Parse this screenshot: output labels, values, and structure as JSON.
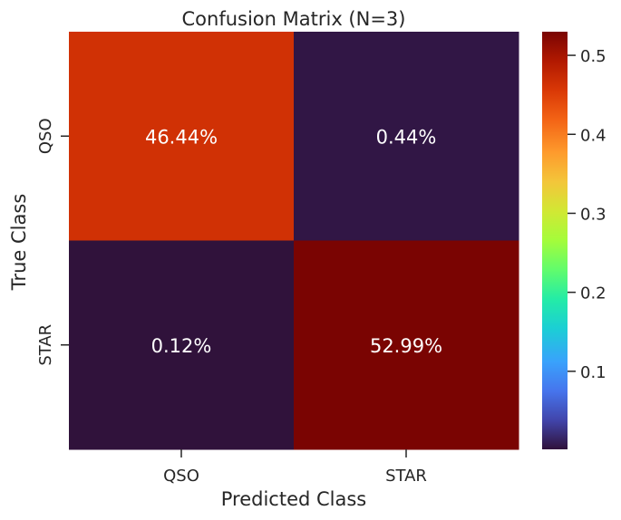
{
  "chart_data": {
    "type": "heatmap",
    "title": "Confusion Matrix (N=3)",
    "xlabel": "Predicted Class",
    "ylabel": "True Class",
    "x_categories": [
      "QSO",
      "STAR"
    ],
    "y_categories": [
      "QSO",
      "STAR"
    ],
    "values": [
      [
        0.4644,
        0.0044
      ],
      [
        0.0012,
        0.5299
      ]
    ],
    "cell_labels": [
      [
        "46.44%",
        "0.44%"
      ],
      [
        "0.12%",
        "52.99%"
      ]
    ],
    "colorbar": {
      "range": [
        0.0012,
        0.5299
      ],
      "ticks": [
        0.1,
        0.2,
        0.3,
        0.4,
        0.5
      ],
      "tick_labels": [
        "0.1",
        "0.2",
        "0.3",
        "0.4",
        "0.5"
      ],
      "colormap": "turbo"
    },
    "grid": false,
    "legend": "colorbar-right"
  }
}
